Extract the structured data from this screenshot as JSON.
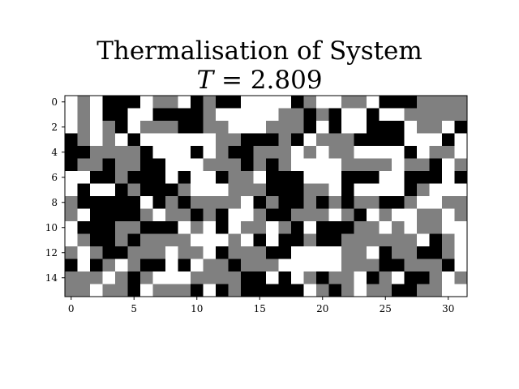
{
  "chart_data": {
    "type": "heatmap",
    "title": "Thermalisation of System",
    "subtitle": "T = 2.809",
    "rows": 16,
    "cols": 32,
    "xticks": [
      0,
      5,
      10,
      15,
      20,
      25,
      30
    ],
    "yticks": [
      0,
      2,
      4,
      6,
      8,
      10,
      12,
      14
    ],
    "colors": {
      "0": "#000000",
      "1": "#808080",
      "2": "#ffffff"
    },
    "grid": false,
    "matrix": [
      "21200021120100222201221120001111",
      "21200220000122222110102202211111",
      "21210211100112221110202200021120",
      "01212022222211000102111000022202",
      "00111102220210011121211222202112",
      "01101100222111010122221111211021",
      "22001000202201120002220002200020",
      "20220100012221110001120222201222",
      "10000020101111201001010110012211",
      "12000012110102210011121021221121",
      "20001100021202112102000112121122",
      "21001011112221202001001111112012",
      "12100111211201110022221120110012",
      "02012100202110111222221110011102",
      "11121012221111002021011201200121",
      "11211021110201000002101211001122"
    ]
  }
}
